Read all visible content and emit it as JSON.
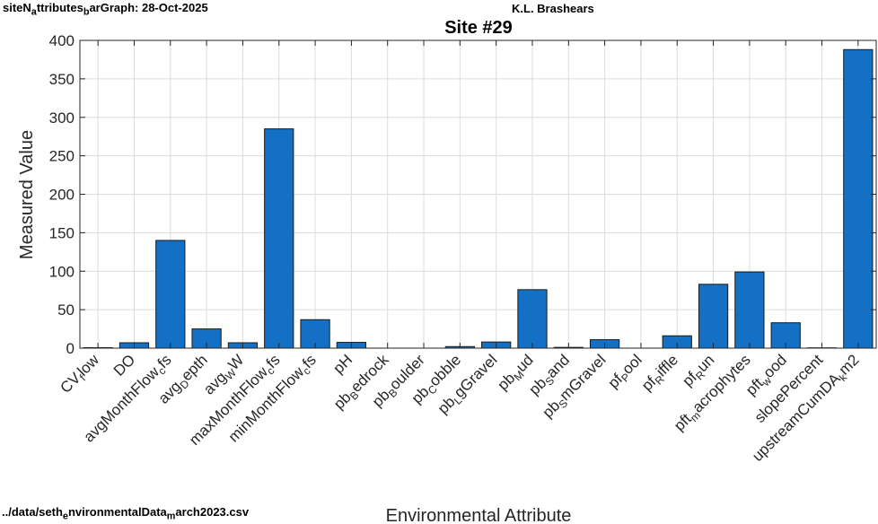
{
  "header": {
    "left_prefix": "siteN",
    "left_sub1": "a",
    "left_mid": "ttributes",
    "left_sub2": "b",
    "left_suffix": "arGraph:  28-Oct-2025",
    "center": "K.L. Brashears",
    "bottom_prefix": "../data/seth",
    "bottom_sub1": "e",
    "bottom_mid": "nvironmentalData",
    "bottom_sub2": "m",
    "bottom_suffix": "arch2023.csv"
  },
  "colors": {
    "bar_fill": "#1470C4",
    "bar_edge": "#1a1a1a",
    "grid": "#dcdcdc",
    "axis": "#262626"
  },
  "chart_data": {
    "type": "bar",
    "title": "Site #29",
    "xlabel": "Environmental Attribute",
    "ylabel": "Measured Value",
    "ylim": [
      0,
      400
    ],
    "yticks": [
      0,
      50,
      100,
      150,
      200,
      250,
      300,
      350,
      400
    ],
    "grid": true,
    "categories": [
      "CV_flow",
      "DO",
      "avgMonthFlow_cfs",
      "avg_Depth",
      "avg_WW",
      "maxMonthFlow_cfs",
      "minMonthFlow_cfs",
      "pH",
      "pb_Bedrock",
      "pb_Boulder",
      "pb_Cobble",
      "pb_LgGravel",
      "pb_Mud",
      "pb_Sand",
      "pb_SmGravel",
      "pf_Pool",
      "pf_Riffle",
      "pf_Run",
      "pft_macrophytes",
      "pft_wood",
      "slopePercent",
      "upstreamCumDA_km2"
    ],
    "tick_labels": [
      [
        [
          "CV",
          ""
        ],
        [
          "f",
          "sub"
        ],
        [
          "low",
          ""
        ]
      ],
      [
        [
          "DO",
          ""
        ]
      ],
      [
        [
          "avgMonthFlow",
          ""
        ],
        [
          "c",
          "sub"
        ],
        [
          "fs",
          ""
        ]
      ],
      [
        [
          "avg",
          ""
        ],
        [
          "D",
          "sub"
        ],
        [
          "epth",
          ""
        ]
      ],
      [
        [
          "avg",
          ""
        ],
        [
          "W",
          "sub"
        ],
        [
          "W",
          ""
        ]
      ],
      [
        [
          "maxMonthFlow",
          ""
        ],
        [
          "c",
          "sub"
        ],
        [
          "fs",
          ""
        ]
      ],
      [
        [
          "minMonthFlow",
          ""
        ],
        [
          "c",
          "sub"
        ],
        [
          "fs",
          ""
        ]
      ],
      [
        [
          "pH",
          ""
        ]
      ],
      [
        [
          "pb",
          ""
        ],
        [
          "B",
          "sub"
        ],
        [
          "edrock",
          ""
        ]
      ],
      [
        [
          "pb",
          ""
        ],
        [
          "B",
          "sub"
        ],
        [
          "oulder",
          ""
        ]
      ],
      [
        [
          "pb",
          ""
        ],
        [
          "C",
          "sub"
        ],
        [
          "obble",
          ""
        ]
      ],
      [
        [
          "pb",
          ""
        ],
        [
          "L",
          "sub"
        ],
        [
          "gGravel",
          ""
        ]
      ],
      [
        [
          "pb",
          ""
        ],
        [
          "M",
          "sub"
        ],
        [
          "ud",
          ""
        ]
      ],
      [
        [
          "pb",
          ""
        ],
        [
          "S",
          "sub"
        ],
        [
          "and",
          ""
        ]
      ],
      [
        [
          "pb",
          ""
        ],
        [
          "S",
          "sub"
        ],
        [
          "mGravel",
          ""
        ]
      ],
      [
        [
          "pf",
          ""
        ],
        [
          "P",
          "sub"
        ],
        [
          "ool",
          ""
        ]
      ],
      [
        [
          "pf",
          ""
        ],
        [
          "R",
          "sub"
        ],
        [
          "iffle",
          ""
        ]
      ],
      [
        [
          "pf",
          ""
        ],
        [
          "R",
          "sub"
        ],
        [
          "un",
          ""
        ]
      ],
      [
        [
          "pft",
          ""
        ],
        [
          "m",
          "sub"
        ],
        [
          "acrophytes",
          ""
        ]
      ],
      [
        [
          "pft",
          ""
        ],
        [
          "w",
          "sub"
        ],
        [
          "ood",
          ""
        ]
      ],
      [
        [
          "slopePercent",
          ""
        ]
      ],
      [
        [
          "upstreamCumDA",
          ""
        ],
        [
          "k",
          "sub"
        ],
        [
          "m2",
          ""
        ]
      ]
    ],
    "values": [
      0.6,
      7,
      140,
      25,
      7,
      285,
      37,
      7.5,
      0,
      0,
      2,
      8,
      76,
      1,
      11,
      0,
      16,
      83,
      99,
      33,
      0.4,
      388
    ]
  }
}
